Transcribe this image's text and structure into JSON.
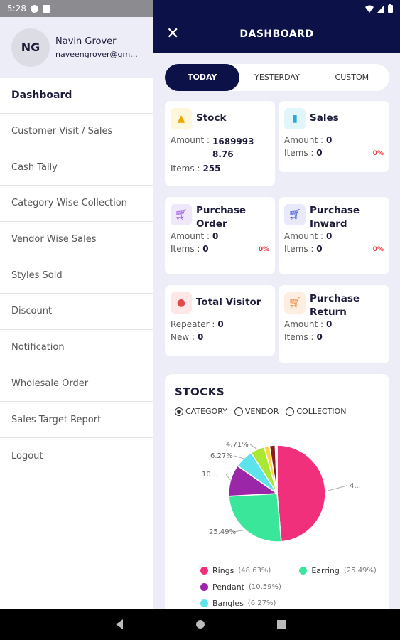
{
  "status": {
    "time": "5:28"
  },
  "appbar": {
    "close_symbol": "✕",
    "title": "DASHBOARD"
  },
  "drawer": {
    "avatar_initials": "NG",
    "user_name": "Navin Grover",
    "user_email": "naveengrover@gm...",
    "items": [
      {
        "label": "Dashboard"
      },
      {
        "label": "Customer Visit / Sales"
      },
      {
        "label": "Cash Tally"
      },
      {
        "label": "Category Wise Collection"
      },
      {
        "label": "Vendor Wise Sales"
      },
      {
        "label": "Styles Sold"
      },
      {
        "label": "Discount"
      },
      {
        "label": "Notification"
      },
      {
        "label": "Wholesale Order"
      },
      {
        "label": "Sales Target Report"
      },
      {
        "label": "Logout"
      }
    ]
  },
  "range_tabs": [
    "TODAY",
    "YESTERDAY",
    "CUSTOM"
  ],
  "cards": {
    "stock": {
      "title": "Stock",
      "amount_label": "Amount :",
      "amount": "16899938.76",
      "items_label": "Items :",
      "items": "255"
    },
    "sales": {
      "title": "Sales",
      "amount_label": "Amount :",
      "amount": "0",
      "items_label": "Items :",
      "items": "0",
      "pct": "0%"
    },
    "purchase_order": {
      "title_1": "Purchase",
      "title_2": "Order",
      "amount_label": "Amount :",
      "amount": "0",
      "items_label": "Items :",
      "items": "0",
      "pct": "0%"
    },
    "purchase_inward": {
      "title_1": "Purchase",
      "title_2": "Inward",
      "amount_label": "Amount :",
      "amount": "0",
      "items_label": "Items :",
      "items": "0",
      "pct": "0%"
    },
    "total_visitor": {
      "title": "Total Visitor",
      "repeater_label": "Repeater :",
      "repeater": "0",
      "new_label": "New :",
      "new": "0"
    },
    "purchase_return": {
      "title_1": "Purchase",
      "title_2": "Return",
      "amount_label": "Amount :",
      "amount": "0",
      "items_label": "Items :",
      "items": "0"
    }
  },
  "stocks": {
    "title": "STOCKS",
    "filters": [
      "CATEGORY",
      "VENDOR",
      "COLLECTION"
    ],
    "selected_filter": "CATEGORY"
  },
  "chart_data": {
    "type": "pie",
    "slices": [
      {
        "name": "Rings",
        "value": 48.63,
        "color": "#f0307a",
        "label": "4..."
      },
      {
        "name": "Earring",
        "value": 25.49,
        "color": "#3ae69a",
        "label": "25.49%"
      },
      {
        "name": "Pendant",
        "value": 10.59,
        "color": "#9b27a8",
        "label": "10..."
      },
      {
        "name": "Bangles",
        "value": 6.27,
        "color": "#5de3ec",
        "label": "6.27%"
      },
      {
        "name": "",
        "value": 4.71,
        "color": "#a8e832",
        "label": "4.71%"
      },
      {
        "name": "",
        "value": 1.8,
        "color": "#ffd23f",
        "label": ""
      },
      {
        "name": "",
        "value": 1.9,
        "color": "#8b1c1c",
        "label": ""
      },
      {
        "name": "",
        "value": 0.61,
        "color": "#c8c8c8",
        "label": ""
      }
    ],
    "legend": [
      {
        "name": "Rings",
        "pct": "(48.63%)",
        "color": "#f0307a"
      },
      {
        "name": "Earring",
        "pct": "(25.49%)",
        "color": "#3ae69a"
      },
      {
        "name": "Pendant",
        "pct": "(10.59%)",
        "color": "#9b27a8"
      },
      {
        "name": "Bangles",
        "pct": "(6.27%)",
        "color": "#5de3ec"
      }
    ]
  }
}
